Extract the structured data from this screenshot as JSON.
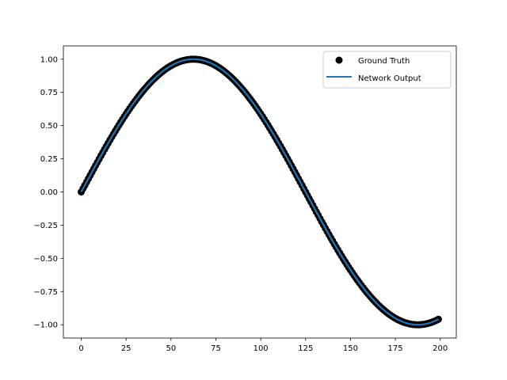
{
  "chart_data": {
    "type": "line",
    "title": "",
    "xlabel": "",
    "ylabel": "",
    "xlim": [
      -9.95,
      208.95
    ],
    "ylim": [
      -1.1,
      1.1
    ],
    "x_ticks": [
      0,
      25,
      50,
      75,
      100,
      125,
      150,
      175,
      200
    ],
    "y_ticks": [
      1.0,
      0.75,
      0.5,
      0.25,
      0.0,
      -0.25,
      -0.5,
      -0.75,
      -1.0
    ],
    "x_tick_labels": [
      "0",
      "25",
      "50",
      "75",
      "100",
      "125",
      "150",
      "175",
      "200"
    ],
    "y_tick_labels": [
      "1.00",
      "0.75",
      "0.50",
      "0.25",
      "0.00",
      "−0.25",
      "−0.50",
      "−0.75",
      "−1.00"
    ],
    "grid": false,
    "legend_position": "top-right",
    "x": {
      "start": 0,
      "stop": 199,
      "count": 200
    },
    "function": "sin(2*pi*x/250)",
    "series": [
      {
        "name": "Ground Truth",
        "style": "markers",
        "color": "#000000"
      },
      {
        "name": "Network Output",
        "style": "line",
        "color": "#1f77b4"
      }
    ]
  }
}
